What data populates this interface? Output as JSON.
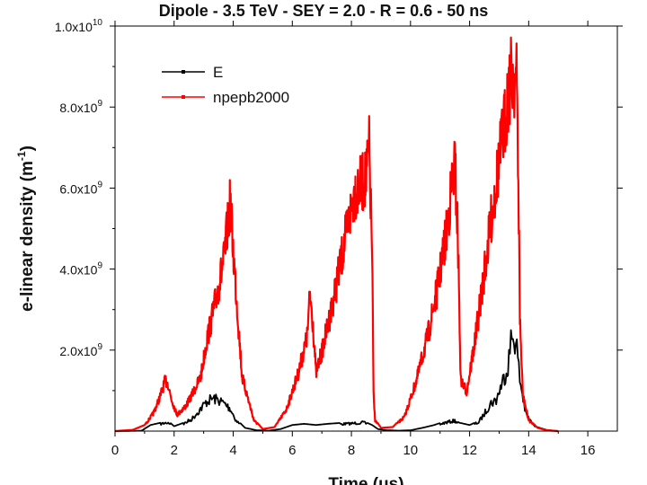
{
  "chart_data": {
    "type": "line",
    "title": "Dipole - 3.5 TeV - SEY = 2.0 - R = 0.6 - 50 ns",
    "xlabel": "Time (μs)",
    "ylabel": "e-linear density (m",
    "ylabel_sup": "-1",
    "ylabel_close": ")",
    "xlim": [
      0,
      17
    ],
    "ylim": [
      0,
      10000000000
    ],
    "x_ticks": [
      0,
      2,
      4,
      6,
      8,
      10,
      12,
      14,
      16
    ],
    "x_tick_labels": [
      "0",
      "2",
      "4",
      "6",
      "8",
      "10",
      "12",
      "14",
      "16"
    ],
    "y_ticks": [
      2000000000,
      4000000000,
      6000000000,
      8000000000,
      10000000000
    ],
    "y_tick_labels": [
      {
        "mantissa": "2.0x10",
        "exp": "9"
      },
      {
        "mantissa": "4.0x10",
        "exp": "9"
      },
      {
        "mantissa": "6.0x10",
        "exp": "9"
      },
      {
        "mantissa": "8.0x10",
        "exp": "9"
      },
      {
        "mantissa": "1.0x10",
        "exp": "10"
      }
    ],
    "legend_position": "top-left",
    "series": [
      {
        "name": "E",
        "color": "#000000",
        "x": [
          0,
          0.9,
          1.2,
          1.5,
          1.8,
          2.0,
          2.3,
          2.6,
          2.9,
          3.1,
          3.3,
          3.5,
          3.7,
          3.9,
          4.1,
          4.4,
          4.8,
          5.2,
          5.6,
          6.0,
          6.4,
          6.8,
          7.2,
          7.6,
          8.0,
          8.4,
          8.7,
          8.9,
          9.2,
          9.6,
          10.0,
          10.4,
          10.8,
          11.2,
          11.5,
          11.7,
          12.0,
          12.3,
          12.5,
          12.7,
          12.9,
          13.1,
          13.3,
          13.4,
          13.5,
          13.6,
          13.7,
          13.9,
          14.2,
          14.6,
          15.0
        ],
        "y": [
          0,
          10000000,
          150000000,
          200000000,
          250000000,
          120000000,
          200000000,
          350000000,
          650000000,
          850000000,
          950000000,
          900000000,
          800000000,
          650000000,
          300000000,
          80000000,
          20000000,
          10000000,
          50000000,
          150000000,
          180000000,
          150000000,
          180000000,
          200000000,
          220000000,
          250000000,
          150000000,
          50000000,
          20000000,
          10000000,
          20000000,
          80000000,
          150000000,
          250000000,
          300000000,
          200000000,
          150000000,
          250000000,
          500000000,
          800000000,
          900000000,
          1400000000,
          1900000000,
          2600000000,
          2800000000,
          2400000000,
          1500000000,
          500000000,
          120000000,
          30000000,
          0
        ]
      },
      {
        "name": "npepb2000",
        "color": "#ff0000",
        "x": [
          0,
          0.6,
          1.0,
          1.3,
          1.5,
          1.7,
          1.8,
          1.9,
          2.1,
          2.4,
          2.6,
          2.9,
          3.1,
          3.3,
          3.5,
          3.7,
          3.8,
          3.9,
          4.0,
          4.3,
          4.7,
          5.0,
          5.4,
          5.8,
          6.2,
          6.5,
          6.6,
          6.7,
          6.8,
          7.0,
          7.3,
          7.6,
          7.9,
          8.1,
          8.3,
          8.5,
          8.6,
          8.7,
          8.75,
          8.8,
          9.0,
          9.4,
          9.8,
          10.2,
          10.6,
          10.9,
          11.2,
          11.4,
          11.5,
          11.6,
          11.7,
          11.9,
          12.2,
          12.5,
          12.8,
          13.0,
          13.2,
          13.3,
          13.4,
          13.5,
          13.6,
          13.65,
          13.7,
          13.8,
          14.0,
          14.3,
          14.6,
          15.0
        ],
        "y": [
          0,
          30000000,
          150000000,
          500000000,
          900000000,
          1400000000,
          1300000000,
          900000000,
          450000000,
          700000000,
          1000000000,
          1500000000,
          2500000000,
          3200000000,
          4000000000,
          4800000000,
          5600000000,
          6300000000,
          5000000000,
          1500000000,
          300000000,
          50000000,
          100000000,
          600000000,
          1600000000,
          2600000000,
          3800000000,
          3000000000,
          1600000000,
          2200000000,
          3300000000,
          4500000000,
          5800000000,
          6600000000,
          6800000000,
          7000000000,
          7800000000,
          5000000000,
          1000000000,
          300000000,
          80000000,
          100000000,
          400000000,
          1400000000,
          2700000000,
          3900000000,
          5400000000,
          6800000000,
          7400000000,
          5500000000,
          1400000000,
          1100000000,
          2600000000,
          4400000000,
          6300000000,
          7500000000,
          8600000000,
          9400000000,
          9800000000,
          9900000000,
          9600000000,
          7000000000,
          3200000000,
          1000000000,
          300000000,
          80000000,
          20000000,
          0
        ]
      }
    ]
  }
}
